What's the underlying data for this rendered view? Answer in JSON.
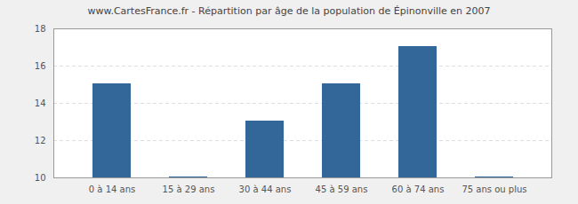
{
  "chart_data": {
    "type": "bar",
    "title": "www.CartesFrance.fr - Répartition par âge de la population de Épinonville en 2007",
    "categories": [
      "0 à 14 ans",
      "15 à 29 ans",
      "30 à 44 ans",
      "45 à 59 ans",
      "60 à 74 ans",
      "75 ans ou plus"
    ],
    "values": [
      15,
      10,
      13,
      15,
      17,
      10
    ],
    "color": "#336699",
    "ylim": [
      10,
      18
    ],
    "yticks": [
      10,
      12,
      14,
      16,
      18
    ],
    "grid": true
  }
}
